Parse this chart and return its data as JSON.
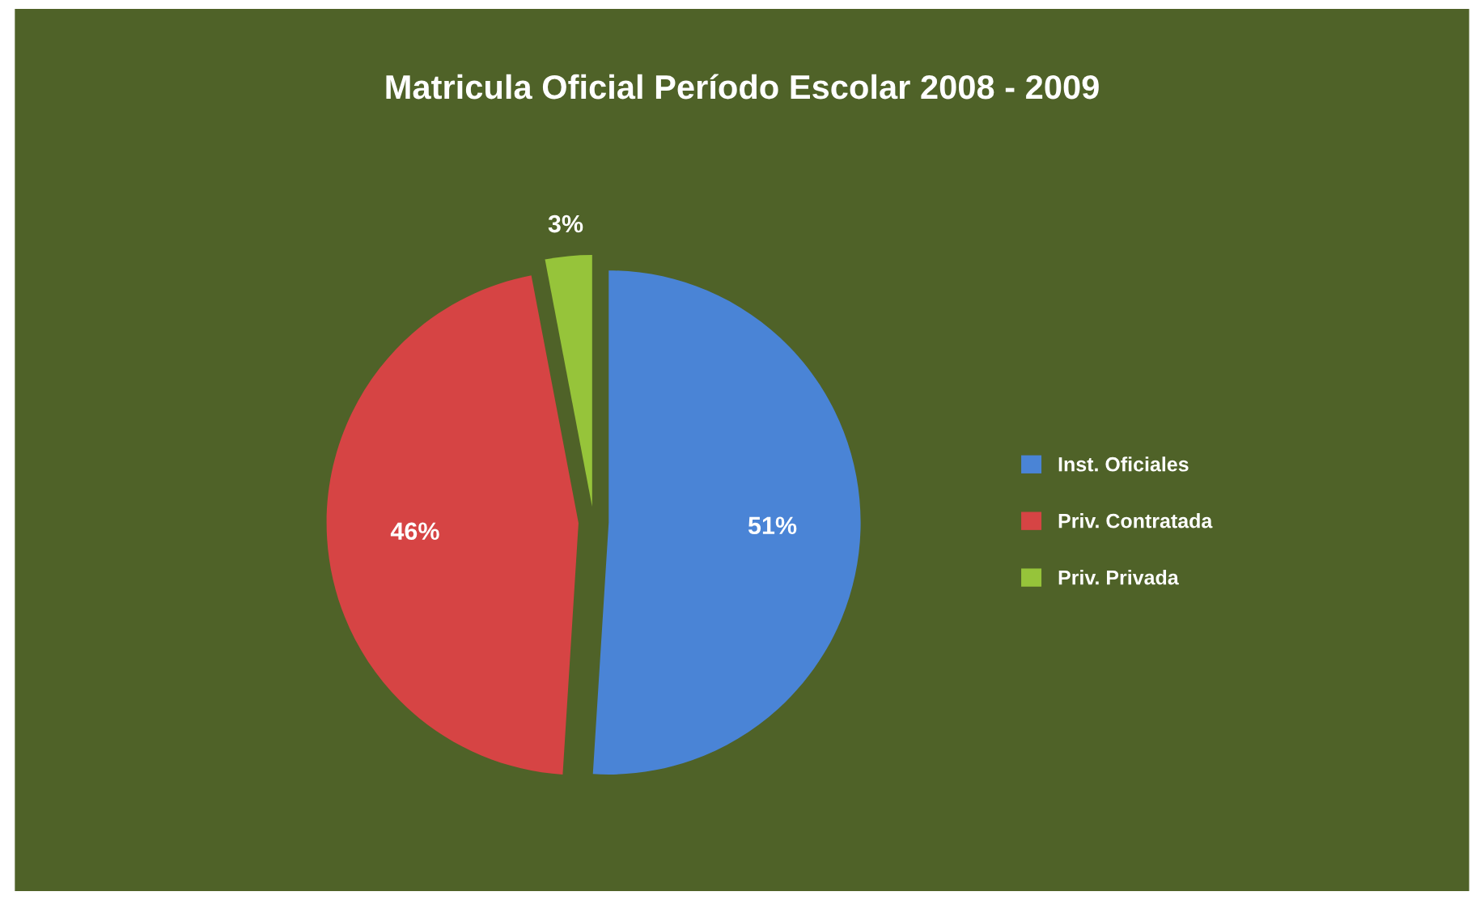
{
  "chart_data": {
    "type": "pie",
    "title": "Matricula Oficial Período Escolar 2008 - 2009",
    "categories": [
      "Inst. Oficiales",
      "Priv. Contratada",
      "Priv. Privada"
    ],
    "values": [
      51,
      46,
      3
    ],
    "colors": [
      "#4a84d6",
      "#d64444",
      "#96c43a"
    ],
    "value_labels": [
      "51%",
      "46%",
      "3%"
    ],
    "legend": "right"
  }
}
